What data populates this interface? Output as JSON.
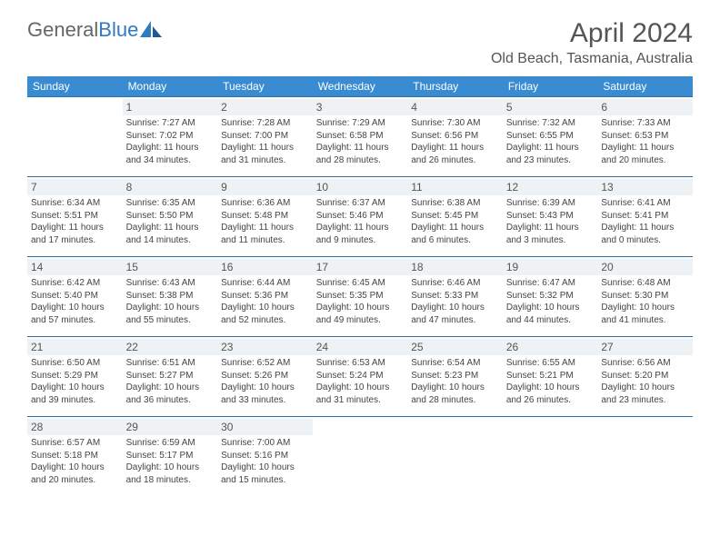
{
  "brand": {
    "part1": "General",
    "part2": "Blue"
  },
  "title": "April 2024",
  "location": "Old Beach, Tasmania, Australia",
  "day_headers": [
    "Sunday",
    "Monday",
    "Tuesday",
    "Wednesday",
    "Thursday",
    "Friday",
    "Saturday"
  ],
  "colors": {
    "header_bg": "#3a8cd2",
    "header_text": "#ffffff",
    "row_divider": "#2f6fa8",
    "daynum_bg": "#eef2f5",
    "text": "#444444",
    "title_text": "#555555",
    "logo_gray": "#666666",
    "logo_blue": "#2f7ac0"
  },
  "weeks": [
    [
      {
        "empty": true
      },
      {
        "day": "1",
        "sunrise": "Sunrise: 7:27 AM",
        "sunset": "Sunset: 7:02 PM",
        "dl1": "Daylight: 11 hours",
        "dl2": "and 34 minutes."
      },
      {
        "day": "2",
        "sunrise": "Sunrise: 7:28 AM",
        "sunset": "Sunset: 7:00 PM",
        "dl1": "Daylight: 11 hours",
        "dl2": "and 31 minutes."
      },
      {
        "day": "3",
        "sunrise": "Sunrise: 7:29 AM",
        "sunset": "Sunset: 6:58 PM",
        "dl1": "Daylight: 11 hours",
        "dl2": "and 28 minutes."
      },
      {
        "day": "4",
        "sunrise": "Sunrise: 7:30 AM",
        "sunset": "Sunset: 6:56 PM",
        "dl1": "Daylight: 11 hours",
        "dl2": "and 26 minutes."
      },
      {
        "day": "5",
        "sunrise": "Sunrise: 7:32 AM",
        "sunset": "Sunset: 6:55 PM",
        "dl1": "Daylight: 11 hours",
        "dl2": "and 23 minutes."
      },
      {
        "day": "6",
        "sunrise": "Sunrise: 7:33 AM",
        "sunset": "Sunset: 6:53 PM",
        "dl1": "Daylight: 11 hours",
        "dl2": "and 20 minutes."
      }
    ],
    [
      {
        "day": "7",
        "sunrise": "Sunrise: 6:34 AM",
        "sunset": "Sunset: 5:51 PM",
        "dl1": "Daylight: 11 hours",
        "dl2": "and 17 minutes."
      },
      {
        "day": "8",
        "sunrise": "Sunrise: 6:35 AM",
        "sunset": "Sunset: 5:50 PM",
        "dl1": "Daylight: 11 hours",
        "dl2": "and 14 minutes."
      },
      {
        "day": "9",
        "sunrise": "Sunrise: 6:36 AM",
        "sunset": "Sunset: 5:48 PM",
        "dl1": "Daylight: 11 hours",
        "dl2": "and 11 minutes."
      },
      {
        "day": "10",
        "sunrise": "Sunrise: 6:37 AM",
        "sunset": "Sunset: 5:46 PM",
        "dl1": "Daylight: 11 hours",
        "dl2": "and 9 minutes."
      },
      {
        "day": "11",
        "sunrise": "Sunrise: 6:38 AM",
        "sunset": "Sunset: 5:45 PM",
        "dl1": "Daylight: 11 hours",
        "dl2": "and 6 minutes."
      },
      {
        "day": "12",
        "sunrise": "Sunrise: 6:39 AM",
        "sunset": "Sunset: 5:43 PM",
        "dl1": "Daylight: 11 hours",
        "dl2": "and 3 minutes."
      },
      {
        "day": "13",
        "sunrise": "Sunrise: 6:41 AM",
        "sunset": "Sunset: 5:41 PM",
        "dl1": "Daylight: 11 hours",
        "dl2": "and 0 minutes."
      }
    ],
    [
      {
        "day": "14",
        "sunrise": "Sunrise: 6:42 AM",
        "sunset": "Sunset: 5:40 PM",
        "dl1": "Daylight: 10 hours",
        "dl2": "and 57 minutes."
      },
      {
        "day": "15",
        "sunrise": "Sunrise: 6:43 AM",
        "sunset": "Sunset: 5:38 PM",
        "dl1": "Daylight: 10 hours",
        "dl2": "and 55 minutes."
      },
      {
        "day": "16",
        "sunrise": "Sunrise: 6:44 AM",
        "sunset": "Sunset: 5:36 PM",
        "dl1": "Daylight: 10 hours",
        "dl2": "and 52 minutes."
      },
      {
        "day": "17",
        "sunrise": "Sunrise: 6:45 AM",
        "sunset": "Sunset: 5:35 PM",
        "dl1": "Daylight: 10 hours",
        "dl2": "and 49 minutes."
      },
      {
        "day": "18",
        "sunrise": "Sunrise: 6:46 AM",
        "sunset": "Sunset: 5:33 PM",
        "dl1": "Daylight: 10 hours",
        "dl2": "and 47 minutes."
      },
      {
        "day": "19",
        "sunrise": "Sunrise: 6:47 AM",
        "sunset": "Sunset: 5:32 PM",
        "dl1": "Daylight: 10 hours",
        "dl2": "and 44 minutes."
      },
      {
        "day": "20",
        "sunrise": "Sunrise: 6:48 AM",
        "sunset": "Sunset: 5:30 PM",
        "dl1": "Daylight: 10 hours",
        "dl2": "and 41 minutes."
      }
    ],
    [
      {
        "day": "21",
        "sunrise": "Sunrise: 6:50 AM",
        "sunset": "Sunset: 5:29 PM",
        "dl1": "Daylight: 10 hours",
        "dl2": "and 39 minutes."
      },
      {
        "day": "22",
        "sunrise": "Sunrise: 6:51 AM",
        "sunset": "Sunset: 5:27 PM",
        "dl1": "Daylight: 10 hours",
        "dl2": "and 36 minutes."
      },
      {
        "day": "23",
        "sunrise": "Sunrise: 6:52 AM",
        "sunset": "Sunset: 5:26 PM",
        "dl1": "Daylight: 10 hours",
        "dl2": "and 33 minutes."
      },
      {
        "day": "24",
        "sunrise": "Sunrise: 6:53 AM",
        "sunset": "Sunset: 5:24 PM",
        "dl1": "Daylight: 10 hours",
        "dl2": "and 31 minutes."
      },
      {
        "day": "25",
        "sunrise": "Sunrise: 6:54 AM",
        "sunset": "Sunset: 5:23 PM",
        "dl1": "Daylight: 10 hours",
        "dl2": "and 28 minutes."
      },
      {
        "day": "26",
        "sunrise": "Sunrise: 6:55 AM",
        "sunset": "Sunset: 5:21 PM",
        "dl1": "Daylight: 10 hours",
        "dl2": "and 26 minutes."
      },
      {
        "day": "27",
        "sunrise": "Sunrise: 6:56 AM",
        "sunset": "Sunset: 5:20 PM",
        "dl1": "Daylight: 10 hours",
        "dl2": "and 23 minutes."
      }
    ],
    [
      {
        "day": "28",
        "sunrise": "Sunrise: 6:57 AM",
        "sunset": "Sunset: 5:18 PM",
        "dl1": "Daylight: 10 hours",
        "dl2": "and 20 minutes."
      },
      {
        "day": "29",
        "sunrise": "Sunrise: 6:59 AM",
        "sunset": "Sunset: 5:17 PM",
        "dl1": "Daylight: 10 hours",
        "dl2": "and 18 minutes."
      },
      {
        "day": "30",
        "sunrise": "Sunrise: 7:00 AM",
        "sunset": "Sunset: 5:16 PM",
        "dl1": "Daylight: 10 hours",
        "dl2": "and 15 minutes."
      },
      {
        "empty": true
      },
      {
        "empty": true
      },
      {
        "empty": true
      },
      {
        "empty": true
      }
    ]
  ]
}
